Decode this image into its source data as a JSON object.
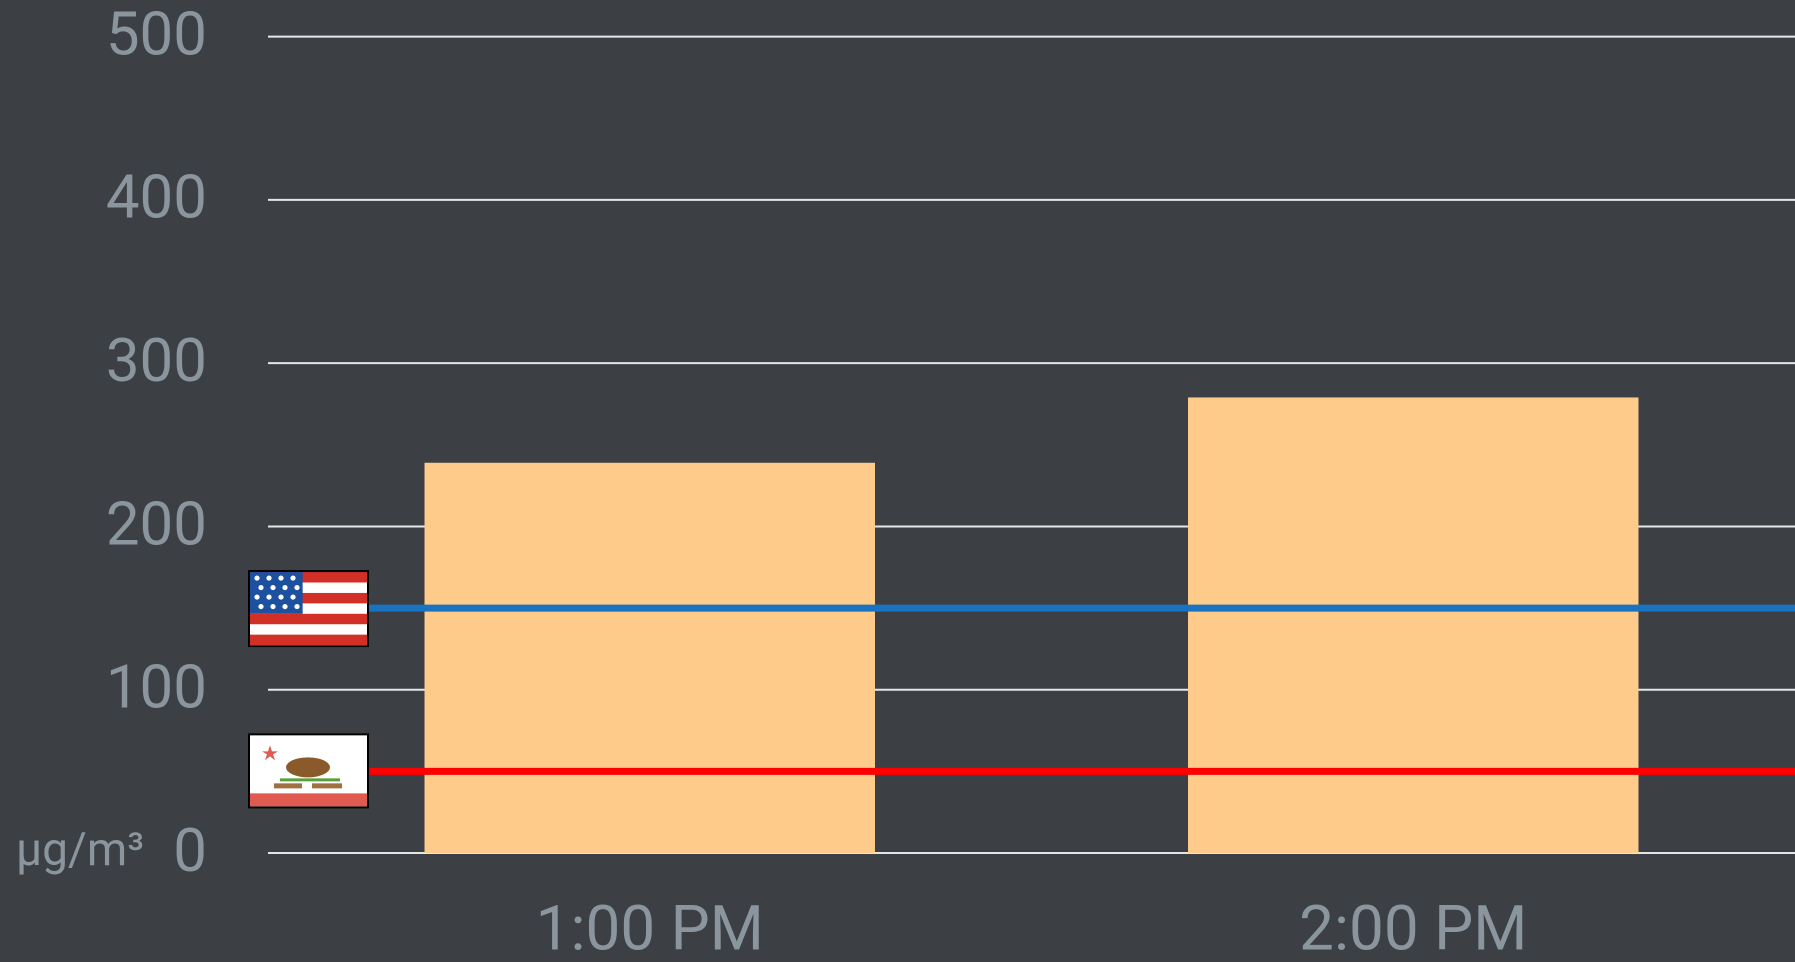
{
  "chart_data": {
    "type": "bar",
    "categories": [
      "1:00 PM",
      "2:00 PM"
    ],
    "values": [
      239,
      279
    ],
    "color": "#fecb8a",
    "ylim": [
      0,
      500
    ],
    "yticks": [
      0,
      100,
      200,
      300,
      400,
      500
    ],
    "y_unit": "µg/m³",
    "grid": true,
    "reference_lines": [
      {
        "value": 150,
        "color": "#1a73c0"
      },
      {
        "value": 50,
        "color": "#ff0000"
      }
    ]
  }
}
